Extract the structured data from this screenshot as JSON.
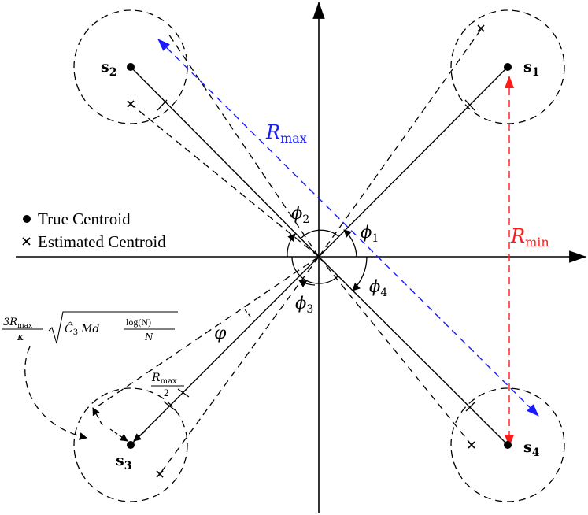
{
  "legend": {
    "true_centroid": "True Centroid",
    "estimated_centroid": "Estimated Centroid"
  },
  "labels": {
    "s1": {
      "base": "s",
      "sub": "1"
    },
    "s2": {
      "base": "s",
      "sub": "2"
    },
    "s3": {
      "base": "s",
      "sub": "3"
    },
    "s4": {
      "base": "s",
      "sub": "4"
    },
    "phi1": {
      "base": "ϕ",
      "sub": "1"
    },
    "phi2": {
      "base": "ϕ",
      "sub": "2"
    },
    "phi3": {
      "base": "ϕ",
      "sub": "3"
    },
    "phi4": {
      "base": "ϕ",
      "sub": "4"
    },
    "varphi": "φ",
    "r_max": {
      "base": "R",
      "sub": "max"
    },
    "r_min": {
      "base": "R",
      "sub": "min"
    },
    "half_r_max": {
      "num_base": "R",
      "num_sub": "max",
      "den": "2"
    },
    "radius_formula": {
      "num": "3R",
      "num_sub": "max",
      "den": "κ",
      "sqrt_c": "Ĉ",
      "sqrt_c_sub": "3",
      "sqrt_mid": "Md",
      "frac_num": "log(N)",
      "frac_den": "N"
    }
  },
  "colors": {
    "r_max": "#1a1aff",
    "r_min": "#ff1a1a",
    "stroke": "#000000"
  }
}
